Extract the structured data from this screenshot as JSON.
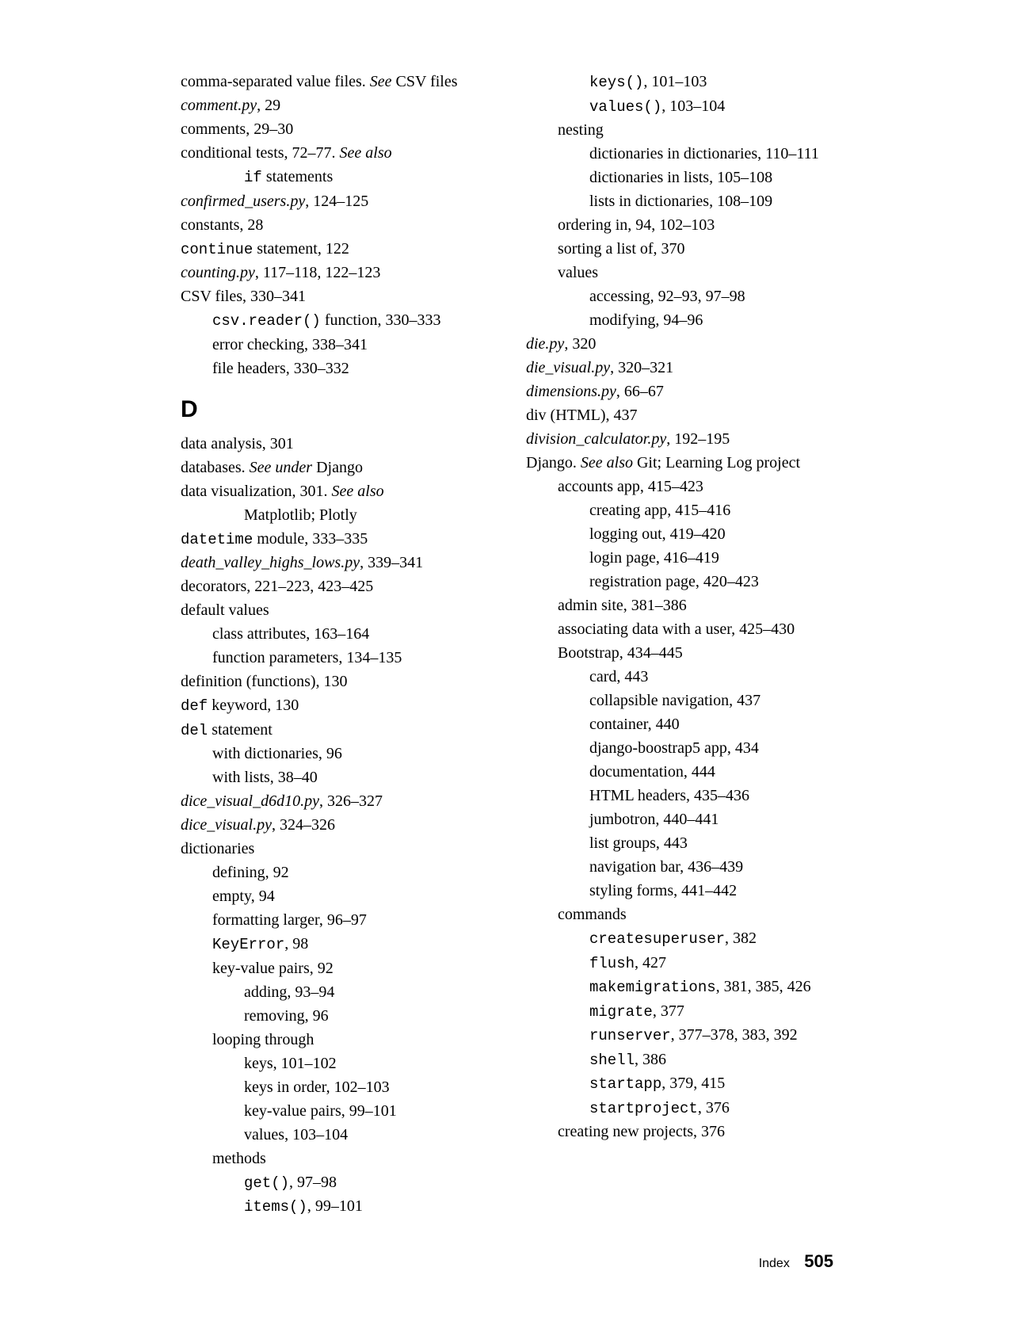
{
  "footer": {
    "label": "Index",
    "page": "505"
  },
  "letterD": "D",
  "col1": [
    {
      "cls": "entry",
      "segs": [
        {
          "t": "comma-separated value files. "
        },
        {
          "t": "See ",
          "it": true
        },
        {
          "t": "CSV files"
        }
      ]
    },
    {
      "cls": "entry",
      "segs": [
        {
          "t": "comment.py",
          "it": true
        },
        {
          "t": ", 29"
        }
      ]
    },
    {
      "cls": "entry",
      "segs": [
        {
          "t": "comments, 29–30"
        }
      ]
    },
    {
      "cls": "entry",
      "segs": [
        {
          "t": "conditional tests, 72–77. "
        },
        {
          "t": "See also",
          "it": true
        }
      ]
    },
    {
      "cls": "sub2",
      "segs": [
        {
          "t": "if",
          "code": true
        },
        {
          "t": " statements"
        }
      ]
    },
    {
      "cls": "entry",
      "segs": [
        {
          "t": "confirmed_users.py",
          "it": true
        },
        {
          "t": ", 124–125"
        }
      ]
    },
    {
      "cls": "entry",
      "segs": [
        {
          "t": "constants, 28"
        }
      ]
    },
    {
      "cls": "entry",
      "segs": [
        {
          "t": "continue",
          "code": true
        },
        {
          "t": " statement, 122"
        }
      ]
    },
    {
      "cls": "entry",
      "segs": [
        {
          "t": "counting.py",
          "it": true
        },
        {
          "t": ", 117–118, 122–123"
        }
      ]
    },
    {
      "cls": "entry",
      "segs": [
        {
          "t": "CSV files, 330–341"
        }
      ]
    },
    {
      "cls": "sub1",
      "segs": [
        {
          "t": "csv.reader()",
          "code": true
        },
        {
          "t": " function, 330–333"
        }
      ]
    },
    {
      "cls": "sub1",
      "segs": [
        {
          "t": "error checking, 338–341"
        }
      ]
    },
    {
      "cls": "sub1",
      "segs": [
        {
          "t": "file headers, 330–332"
        }
      ]
    },
    {
      "letter": true
    },
    {
      "cls": "entry",
      "segs": [
        {
          "t": "data analysis, 301"
        }
      ]
    },
    {
      "cls": "entry",
      "segs": [
        {
          "t": "databases. "
        },
        {
          "t": "See under ",
          "it": true
        },
        {
          "t": "Django"
        }
      ]
    },
    {
      "cls": "entry",
      "segs": [
        {
          "t": "data visualization, 301. "
        },
        {
          "t": "See also",
          "it": true
        }
      ]
    },
    {
      "cls": "sub2",
      "segs": [
        {
          "t": "Matplotlib; Plotly"
        }
      ]
    },
    {
      "cls": "entry",
      "segs": [
        {
          "t": "datetime",
          "code": true
        },
        {
          "t": " module, 333–335"
        }
      ]
    },
    {
      "cls": "entry",
      "segs": [
        {
          "t": "death_valley_highs_lows.py",
          "it": true
        },
        {
          "t": ", 339–341"
        }
      ]
    },
    {
      "cls": "entry",
      "segs": [
        {
          "t": "decorators, 221–223, 423–425"
        }
      ]
    },
    {
      "cls": "entry",
      "segs": [
        {
          "t": "default values"
        }
      ]
    },
    {
      "cls": "sub1",
      "segs": [
        {
          "t": "class attributes, 163–164"
        }
      ]
    },
    {
      "cls": "sub1",
      "segs": [
        {
          "t": "function parameters, 134–135"
        }
      ]
    },
    {
      "cls": "entry",
      "segs": [
        {
          "t": "definition (functions), 130"
        }
      ]
    },
    {
      "cls": "entry",
      "segs": [
        {
          "t": "def",
          "code": true
        },
        {
          "t": " keyword, 130"
        }
      ]
    },
    {
      "cls": "entry",
      "segs": [
        {
          "t": "del",
          "code": true
        },
        {
          "t": " statement"
        }
      ]
    },
    {
      "cls": "sub1",
      "segs": [
        {
          "t": "with dictionaries, 96"
        }
      ]
    },
    {
      "cls": "sub1",
      "segs": [
        {
          "t": "with lists, 38–40"
        }
      ]
    },
    {
      "cls": "entry",
      "segs": [
        {
          "t": "dice_visual_d6d10.py",
          "it": true
        },
        {
          "t": ", 326–327"
        }
      ]
    },
    {
      "cls": "entry",
      "segs": [
        {
          "t": "dice_visual.py",
          "it": true
        },
        {
          "t": ", 324–326"
        }
      ]
    },
    {
      "cls": "entry",
      "segs": [
        {
          "t": "dictionaries"
        }
      ]
    },
    {
      "cls": "sub1",
      "segs": [
        {
          "t": "defining, 92"
        }
      ]
    },
    {
      "cls": "sub1",
      "segs": [
        {
          "t": "empty, 94"
        }
      ]
    },
    {
      "cls": "sub1",
      "segs": [
        {
          "t": "formatting larger, 96–97"
        }
      ]
    },
    {
      "cls": "sub1",
      "segs": [
        {
          "t": "KeyError",
          "code": true
        },
        {
          "t": ", 98"
        }
      ]
    },
    {
      "cls": "sub1",
      "segs": [
        {
          "t": "key-value pairs, 92"
        }
      ]
    },
    {
      "cls": "sub2",
      "segs": [
        {
          "t": "adding, 93–94"
        }
      ]
    },
    {
      "cls": "sub2",
      "segs": [
        {
          "t": "removing, 96"
        }
      ]
    },
    {
      "cls": "sub1",
      "segs": [
        {
          "t": "looping through"
        }
      ]
    },
    {
      "cls": "sub2",
      "segs": [
        {
          "t": "keys, 101–102"
        }
      ]
    },
    {
      "cls": "sub2",
      "segs": [
        {
          "t": "keys in order, 102–103"
        }
      ]
    },
    {
      "cls": "sub2",
      "segs": [
        {
          "t": "key-value pairs, 99–101"
        }
      ]
    },
    {
      "cls": "sub2",
      "segs": [
        {
          "t": "values, 103–104"
        }
      ]
    },
    {
      "cls": "sub1",
      "segs": [
        {
          "t": "methods"
        }
      ]
    },
    {
      "cls": "sub2",
      "segs": [
        {
          "t": "get()",
          "code": true
        },
        {
          "t": ", 97–98"
        }
      ]
    },
    {
      "cls": "sub2",
      "segs": [
        {
          "t": "items()",
          "code": true
        },
        {
          "t": ", 99–101"
        }
      ]
    }
  ],
  "col2": [
    {
      "cls": "sub2",
      "segs": [
        {
          "t": "keys()",
          "code": true
        },
        {
          "t": ", 101–103"
        }
      ]
    },
    {
      "cls": "sub2",
      "segs": [
        {
          "t": "values()",
          "code": true
        },
        {
          "t": ", 103–104"
        }
      ]
    },
    {
      "cls": "sub1",
      "segs": [
        {
          "t": "nesting"
        }
      ]
    },
    {
      "cls": "sub2",
      "segs": [
        {
          "t": "dictionaries in dictionaries, 110–111"
        }
      ]
    },
    {
      "cls": "sub2",
      "segs": [
        {
          "t": "dictionaries in lists, 105–108"
        }
      ]
    },
    {
      "cls": "sub2",
      "segs": [
        {
          "t": "lists in dictionaries, 108–109"
        }
      ]
    },
    {
      "cls": "sub1",
      "segs": [
        {
          "t": "ordering in, 94, 102–103"
        }
      ]
    },
    {
      "cls": "sub1",
      "segs": [
        {
          "t": "sorting a list of, 370"
        }
      ]
    },
    {
      "cls": "sub1",
      "segs": [
        {
          "t": "values"
        }
      ]
    },
    {
      "cls": "sub2",
      "segs": [
        {
          "t": "accessing, 92–93, 97–98"
        }
      ]
    },
    {
      "cls": "sub2",
      "segs": [
        {
          "t": "modifying, 94–96"
        }
      ]
    },
    {
      "cls": "entry",
      "segs": [
        {
          "t": "die.py",
          "it": true
        },
        {
          "t": ", 320"
        }
      ]
    },
    {
      "cls": "entry",
      "segs": [
        {
          "t": "die_visual.py",
          "it": true
        },
        {
          "t": ", 320–321"
        }
      ]
    },
    {
      "cls": "entry",
      "segs": [
        {
          "t": "dimensions.py",
          "it": true
        },
        {
          "t": ", 66–67"
        }
      ]
    },
    {
      "cls": "entry",
      "segs": [
        {
          "t": "div (HTML), 437"
        }
      ]
    },
    {
      "cls": "entry",
      "segs": [
        {
          "t": "division_calculator.py",
          "it": true
        },
        {
          "t": ", 192–195"
        }
      ]
    },
    {
      "cls": "entry",
      "segs": [
        {
          "t": "Django. "
        },
        {
          "t": "See also ",
          "it": true
        },
        {
          "t": "Git; Learning Log project"
        }
      ]
    },
    {
      "cls": "sub1",
      "segs": [
        {
          "t": "accounts app, 415–423"
        }
      ]
    },
    {
      "cls": "sub2",
      "segs": [
        {
          "t": "creating app, 415–416"
        }
      ]
    },
    {
      "cls": "sub2",
      "segs": [
        {
          "t": "logging out, 419–420"
        }
      ]
    },
    {
      "cls": "sub2",
      "segs": [
        {
          "t": "login page, 416–419"
        }
      ]
    },
    {
      "cls": "sub2",
      "segs": [
        {
          "t": "registration page, 420–423"
        }
      ]
    },
    {
      "cls": "sub1",
      "segs": [
        {
          "t": "admin site, 381–386"
        }
      ]
    },
    {
      "cls": "sub1",
      "segs": [
        {
          "t": "associating data with a user, 425–430"
        }
      ]
    },
    {
      "cls": "sub1",
      "segs": [
        {
          "t": "Bootstrap, 434–445"
        }
      ]
    },
    {
      "cls": "sub2",
      "segs": [
        {
          "t": "card, 443"
        }
      ]
    },
    {
      "cls": "sub2",
      "segs": [
        {
          "t": "collapsible navigation, 437"
        }
      ]
    },
    {
      "cls": "sub2",
      "segs": [
        {
          "t": "container, 440"
        }
      ]
    },
    {
      "cls": "sub2",
      "segs": [
        {
          "t": "django-boostrap5 app, 434"
        }
      ]
    },
    {
      "cls": "sub2",
      "segs": [
        {
          "t": "documentation, 444"
        }
      ]
    },
    {
      "cls": "sub2",
      "segs": [
        {
          "t": "HTML headers, 435–436"
        }
      ]
    },
    {
      "cls": "sub2",
      "segs": [
        {
          "t": "jumbotron, 440–441"
        }
      ]
    },
    {
      "cls": "sub2",
      "segs": [
        {
          "t": "list groups, 443"
        }
      ]
    },
    {
      "cls": "sub2",
      "segs": [
        {
          "t": "navigation bar, 436–439"
        }
      ]
    },
    {
      "cls": "sub2",
      "segs": [
        {
          "t": "styling forms, 441–442"
        }
      ]
    },
    {
      "cls": "sub1",
      "segs": [
        {
          "t": "commands"
        }
      ]
    },
    {
      "cls": "sub2",
      "segs": [
        {
          "t": "createsuperuser",
          "code": true
        },
        {
          "t": ", 382"
        }
      ]
    },
    {
      "cls": "sub2",
      "segs": [
        {
          "t": "flush",
          "code": true
        },
        {
          "t": ", 427"
        }
      ]
    },
    {
      "cls": "sub2",
      "segs": [
        {
          "t": "makemigrations",
          "code": true
        },
        {
          "t": ", 381, 385, 426"
        }
      ]
    },
    {
      "cls": "sub2",
      "segs": [
        {
          "t": "migrate",
          "code": true
        },
        {
          "t": ", 377"
        }
      ]
    },
    {
      "cls": "sub2",
      "segs": [
        {
          "t": "runserver",
          "code": true
        },
        {
          "t": ", 377–378, 383, 392"
        }
      ]
    },
    {
      "cls": "sub2",
      "segs": [
        {
          "t": "shell",
          "code": true
        },
        {
          "t": ", 386"
        }
      ]
    },
    {
      "cls": "sub2",
      "segs": [
        {
          "t": "startapp",
          "code": true
        },
        {
          "t": ", 379, 415"
        }
      ]
    },
    {
      "cls": "sub2",
      "segs": [
        {
          "t": "startproject",
          "code": true
        },
        {
          "t": ", 376"
        }
      ]
    },
    {
      "cls": "sub1",
      "segs": [
        {
          "t": "creating new projects, 376"
        }
      ]
    }
  ]
}
